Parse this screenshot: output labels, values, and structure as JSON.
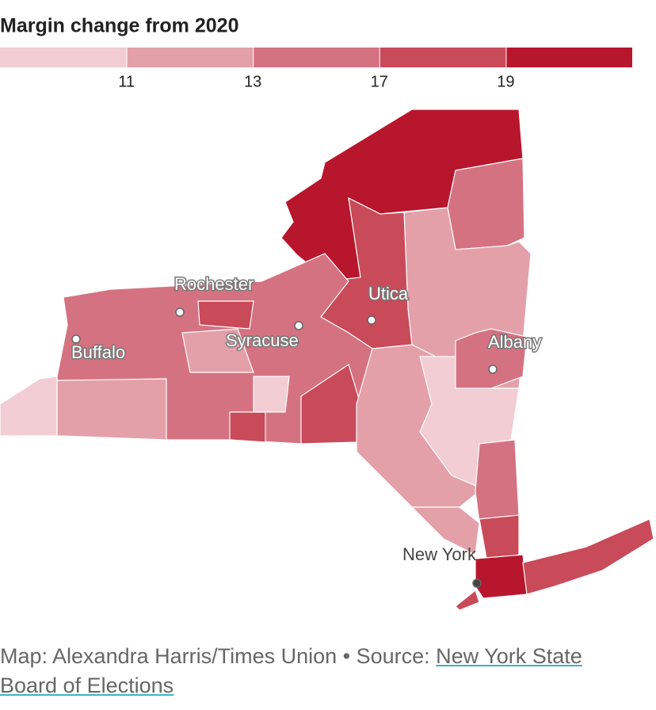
{
  "title": "Margin change from 2020",
  "legend": {
    "colors": [
      "#f2cdd3",
      "#e4a0a9",
      "#d57282",
      "#c94a59",
      "#b8162d"
    ],
    "ticks": [
      11,
      13,
      17,
      19
    ]
  },
  "cities": [
    {
      "label": "Rochester"
    },
    {
      "label": "Utica"
    },
    {
      "label": "Syracuse"
    },
    {
      "label": "Buffalo"
    },
    {
      "label": "Albany"
    },
    {
      "label": "New York"
    }
  ],
  "footer": {
    "credit": "Map: Alexandra Harris/Times Union • Source: ",
    "link": "New York State Board of Elections"
  }
}
